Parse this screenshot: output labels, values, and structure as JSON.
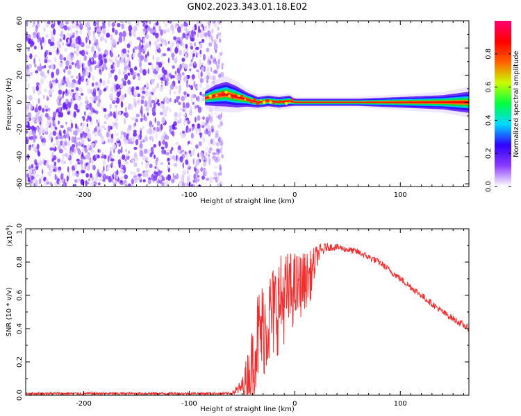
{
  "figure_title": "GN02.2023.343.01.18.E02",
  "chart_data": [
    {
      "type": "heatmap",
      "name": "spectrogram",
      "xlabel": "Height of straight line (km)",
      "ylabel": "Frequency (Hz)",
      "xlim": [
        -255,
        165
      ],
      "ylim": [
        -62,
        60
      ],
      "xticks": [
        -200,
        -100,
        0,
        100
      ],
      "xtick_labels": [
        "-200",
        "-100",
        "0",
        "100"
      ],
      "yticks": [
        -60,
        -40,
        -20,
        0,
        20,
        40,
        60
      ],
      "ytick_labels": [
        "-60",
        "-40",
        "-20",
        "0",
        "20",
        "40",
        "60"
      ],
      "noise_region_x": [
        -255,
        -75
      ],
      "signal_track": {
        "x": [
          -85,
          -75,
          -65,
          -55,
          -45,
          -35,
          -25,
          -15,
          -5,
          0,
          20,
          60,
          100,
          140,
          165
        ],
        "freq": [
          3,
          5,
          6,
          4,
          2,
          0,
          1,
          0,
          1,
          0,
          0,
          0,
          0,
          0,
          0
        ],
        "width_hz": [
          4,
          6,
          7,
          6,
          4,
          3,
          3,
          3,
          3,
          2,
          2,
          2,
          3,
          4,
          6
        ]
      },
      "colorbar": {
        "label": "Normalized spectral amplitude",
        "range": [
          0,
          1
        ],
        "ticks": [
          0.0,
          0.2,
          0.4,
          0.6,
          0.8
        ],
        "tick_labels": [
          "0.0",
          "0.2",
          "0.4",
          "0.6",
          "0.8"
        ],
        "colors": [
          "#ffffff",
          "#8b3cff",
          "#3000ff",
          "#00d8ff",
          "#00ff40",
          "#c8ff00",
          "#ff6000",
          "#ff0000",
          "#ff0070"
        ]
      }
    },
    {
      "type": "line",
      "name": "snr",
      "xlabel": "Height of straight line (km)",
      "ylabel": "SNR (10 * v/v)",
      "scale_label": "(x10",
      "scale_exponent": "4",
      "scale_close": ")",
      "xlim": [
        -255,
        165
      ],
      "ylim": [
        0,
        1.0
      ],
      "xticks": [
        -200,
        -100,
        0,
        100
      ],
      "xtick_labels": [
        "-200",
        "-100",
        "0",
        "100"
      ],
      "yticks": [
        0.0,
        0.2,
        0.4,
        0.6,
        0.8,
        1.0
      ],
      "ytick_labels": [
        "0.0",
        "0.2",
        "0.4",
        "0.6",
        "0.8",
        "1.0"
      ],
      "line_color": "#f03030",
      "series": [
        {
          "name": "SNR",
          "x": [
            -255,
            -150,
            -60,
            -50,
            -42,
            -35,
            -25,
            -15,
            -5,
            5,
            15,
            22,
            30,
            40,
            60,
            80,
            100,
            120,
            140,
            165
          ],
          "y": [
            0.01,
            0.01,
            0.01,
            0.05,
            0.15,
            0.35,
            0.45,
            0.55,
            0.62,
            0.66,
            0.72,
            0.85,
            0.89,
            0.89,
            0.86,
            0.8,
            0.7,
            0.6,
            0.5,
            0.4
          ],
          "noise_amplitude": [
            0.008,
            0.008,
            0.008,
            0.05,
            0.2,
            0.3,
            0.3,
            0.3,
            0.25,
            0.2,
            0.15,
            0.06,
            0.025,
            0.02,
            0.02,
            0.02,
            0.02,
            0.02,
            0.02,
            0.02
          ]
        }
      ]
    }
  ]
}
